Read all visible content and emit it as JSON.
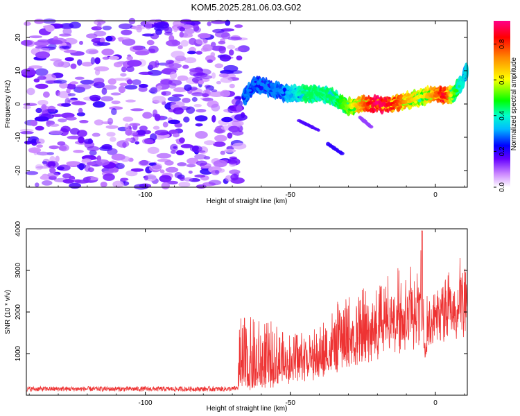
{
  "title": "KOM5.2025.281.06.03.G02",
  "chart_data": [
    {
      "type": "heatmap",
      "xlabel": "Height of straight line (km)",
      "ylabel": "Frequency (Hz)",
      "xlim": [
        -141,
        11
      ],
      "ylim": [
        -25,
        25
      ],
      "xticks": [
        -100,
        -50,
        0
      ],
      "xtick_labels": [
        "-100",
        "-50",
        "0"
      ],
      "yticks": [
        -20,
        -10,
        0,
        10,
        20
      ],
      "ytick_labels": [
        "-20",
        "-10",
        "0",
        "10",
        "20"
      ],
      "colorbar": {
        "label": "Normalized spectral amplitude",
        "range": [
          0,
          0.93
        ],
        "ticks": [
          0.0,
          0.2,
          0.4,
          0.6,
          0.8
        ],
        "tick_labels": [
          "0.0",
          "0.2",
          "0.4",
          "0.6",
          "0.8"
        ]
      },
      "noise_region": {
        "x_range": [
          -141,
          -66
        ],
        "typical_amplitude": [
          0.05,
          0.2
        ]
      },
      "ridge": [
        {
          "x": -66,
          "y": 2,
          "amp": 0.3
        },
        {
          "x": -62,
          "y": 6,
          "amp": 0.3
        },
        {
          "x": -58,
          "y": 5,
          "amp": 0.3
        },
        {
          "x": -54,
          "y": 4,
          "amp": 0.3
        },
        {
          "x": -50,
          "y": 3,
          "amp": 0.35
        },
        {
          "x": -45,
          "y": 3,
          "amp": 0.45
        },
        {
          "x": -40,
          "y": 3,
          "amp": 0.45
        },
        {
          "x": -35,
          "y": 2,
          "amp": 0.45
        },
        {
          "x": -30,
          "y": -1,
          "amp": 0.55
        },
        {
          "x": -25,
          "y": 0,
          "amp": 0.75
        },
        {
          "x": -20,
          "y": 0,
          "amp": 0.93
        },
        {
          "x": -15,
          "y": 0,
          "amp": 0.85
        },
        {
          "x": -10,
          "y": 1,
          "amp": 0.7
        },
        {
          "x": -5,
          "y": 2,
          "amp": 0.6
        },
        {
          "x": 0,
          "y": 3,
          "amp": 0.75
        },
        {
          "x": 3,
          "y": 2.5,
          "amp": 0.88
        },
        {
          "x": 6,
          "y": 3,
          "amp": 0.55
        },
        {
          "x": 9,
          "y": 6,
          "amp": 0.4
        },
        {
          "x": 11,
          "y": 11,
          "amp": 0.35
        }
      ],
      "branches": [
        {
          "points": [
            {
              "x": -47,
              "y": -5
            },
            {
              "x": -40,
              "y": -8
            }
          ],
          "amp": 0.18
        },
        {
          "points": [
            {
              "x": -37,
              "y": -12
            },
            {
              "x": -32,
              "y": -15
            }
          ],
          "amp": 0.2
        },
        {
          "points": [
            {
              "x": -26,
              "y": -4
            },
            {
              "x": -22,
              "y": -7
            }
          ],
          "amp": 0.12
        }
      ]
    },
    {
      "type": "line",
      "xlabel": "Height of straight line (km)",
      "ylabel": "SNR (10 * v/v)",
      "xlim": [
        -141,
        11
      ],
      "ylim": [
        0,
        4000
      ],
      "xticks": [
        -100,
        -50,
        0
      ],
      "xtick_labels": [
        "-100",
        "-50",
        "0"
      ],
      "yticks": [
        1000,
        2000,
        3000,
        4000
      ],
      "ytick_labels": [
        "1000",
        "2000",
        "3000",
        "4000"
      ],
      "color": "#ee3333",
      "series": [
        {
          "name": "SNR",
          "baseline": [
            {
              "x": -141,
              "v": 150
            },
            {
              "x": -70,
              "v": 150
            },
            {
              "x": -62,
              "v": 270
            },
            {
              "x": -56,
              "v": 400
            },
            {
              "x": -50,
              "v": 600
            },
            {
              "x": -40,
              "v": 780
            },
            {
              "x": -30,
              "v": 1250
            },
            {
              "x": -20,
              "v": 1700
            },
            {
              "x": -10,
              "v": 2100
            },
            {
              "x": -5,
              "v": 2300
            },
            {
              "x": 0,
              "v": 2500
            },
            {
              "x": 11,
              "v": 3000
            }
          ],
          "peaks": [
            {
              "x": -58,
              "v": 1850
            },
            {
              "x": -50,
              "v": 1600
            },
            {
              "x": -40,
              "v": 1750
            },
            {
              "x": -30,
              "v": 2500
            },
            {
              "x": -20,
              "v": 2800
            },
            {
              "x": -10,
              "v": 3200
            },
            {
              "x": -4.5,
              "v": 3950
            },
            {
              "x": -3.5,
              "v": 900
            },
            {
              "x": 3,
              "v": 3100
            },
            {
              "x": 8,
              "v": 3550
            },
            {
              "x": 10,
              "v": 3450
            }
          ]
        }
      ]
    }
  ]
}
